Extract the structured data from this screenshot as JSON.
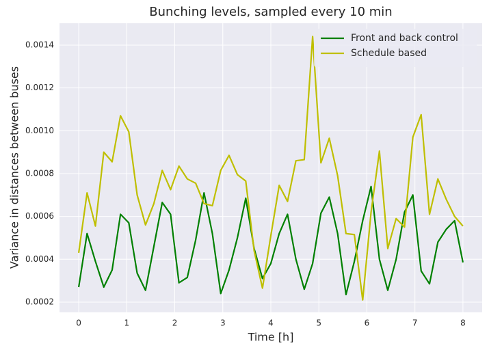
{
  "chart_data": {
    "type": "line",
    "title": "Bunching levels, sampled every 10 min",
    "xlabel": "Time [h]",
    "ylabel": "Variance in distances between buses",
    "x": [
      0,
      0.174,
      0.348,
      0.522,
      0.696,
      0.87,
      1.043,
      1.217,
      1.391,
      1.565,
      1.739,
      1.913,
      2.087,
      2.261,
      2.435,
      2.609,
      2.783,
      2.957,
      3.13,
      3.304,
      3.478,
      3.652,
      3.826,
      4,
      4.174,
      4.348,
      4.522,
      4.696,
      4.87,
      5.043,
      5.217,
      5.391,
      5.565,
      5.739,
      5.913,
      6.087,
      6.261,
      6.435,
      6.609,
      6.783,
      6.957,
      7.13,
      7.304,
      7.478,
      7.652,
      7.826,
      8
    ],
    "series": [
      {
        "name": "Front and back control",
        "color": "#008000",
        "values": [
          0.00027,
          0.00052,
          0.00039,
          0.00027,
          0.00035,
          0.00061,
          0.00057,
          0.000335,
          0.000255,
          0.00046,
          0.000665,
          0.00061,
          0.00029,
          0.000315,
          0.00049,
          0.00071,
          0.00052,
          0.00024,
          0.00035,
          0.0005,
          0.000685,
          0.00045,
          0.00031,
          0.00038,
          0.00052,
          0.00061,
          0.0004,
          0.00026,
          0.00038,
          0.000615,
          0.00069,
          0.00052,
          0.000235,
          0.00039,
          0.00058,
          0.00074,
          0.0004,
          0.000255,
          0.0004,
          0.00062,
          0.0007,
          0.000345,
          0.000285,
          0.00048,
          0.00054,
          0.00058,
          0.000385
        ]
      },
      {
        "name": "Schedule based",
        "color": "#bfbf00",
        "values": [
          0.00043,
          0.00071,
          0.000555,
          0.0009,
          0.000855,
          0.00107,
          0.000995,
          0.0007,
          0.00056,
          0.00066,
          0.000815,
          0.000725,
          0.000835,
          0.000775,
          0.000755,
          0.00066,
          0.00065,
          0.000815,
          0.000885,
          0.000795,
          0.000765,
          0.00044,
          0.000265,
          0.00051,
          0.000745,
          0.00067,
          0.00086,
          0.000865,
          0.00144,
          0.00085,
          0.000965,
          0.00079,
          0.00052,
          0.000515,
          0.00021,
          0.00062,
          0.000905,
          0.00045,
          0.00059,
          0.00055,
          0.00097,
          0.001075,
          0.00061,
          0.000775,
          0.00068,
          0.0006,
          0.000555
        ]
      }
    ],
    "xlim": [
      -0.4,
      8.4
    ],
    "xticks": [
      0,
      1,
      2,
      3,
      4,
      5,
      6,
      7,
      8
    ],
    "ylim": [
      0.000152,
      0.001502
    ],
    "yticks": [
      0.0002,
      0.0004,
      0.0006,
      0.0008,
      {
        "value": 0.001,
        "label": "0.0010"
      },
      0.0012,
      0.0014
    ],
    "grid": true,
    "legend": "upper right"
  }
}
